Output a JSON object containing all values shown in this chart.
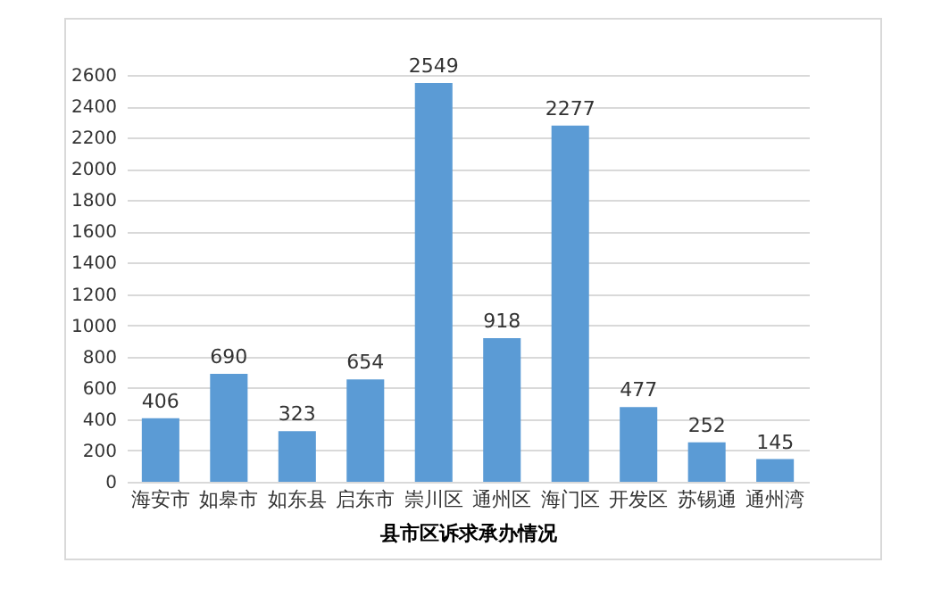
{
  "chart_data": {
    "type": "bar",
    "xlabel": "县市区诉求承办情况",
    "categories": [
      "海安市",
      "如皋市",
      "如东县",
      "启东市",
      "崇川区",
      "通州区",
      "海门区",
      "开发区",
      "苏锡通",
      "通州湾"
    ],
    "values": [
      406,
      690,
      323,
      654,
      2549,
      918,
      2277,
      477,
      252,
      145
    ],
    "color": "#5b9bd5",
    "ylim": [
      0,
      2600
    ],
    "yticks": [
      0,
      200,
      400,
      600,
      800,
      1000,
      1200,
      1400,
      1600,
      1800,
      2000,
      2200,
      2400,
      2600
    ],
    "grid": "y",
    "data_labels": true
  }
}
